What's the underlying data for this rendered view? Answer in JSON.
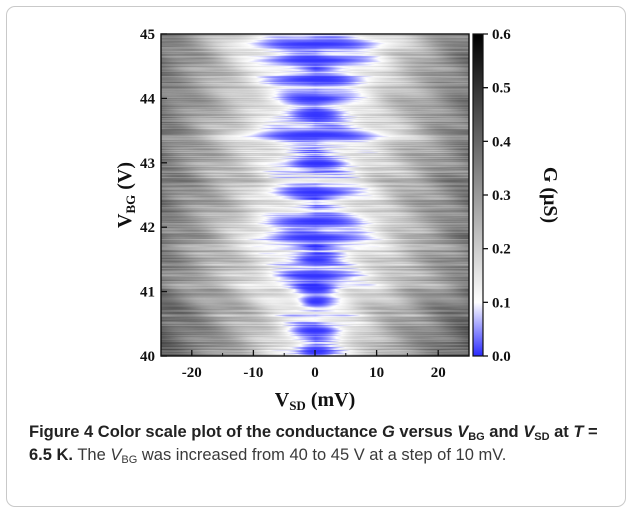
{
  "chart_data": {
    "type": "heatmap",
    "title": "",
    "xlabel": {
      "main": "V",
      "sub": "SD",
      "unit": "(mV)"
    },
    "ylabel": {
      "main": "V",
      "sub": "BG",
      "unit": "(V)"
    },
    "colorbar_label": "G (μS)",
    "xlim": [
      -25,
      25
    ],
    "ylim": [
      40,
      45
    ],
    "clim": [
      0.0,
      0.6
    ],
    "x_ticks": [
      {
        "value": -20,
        "label": "-20"
      },
      {
        "value": -10,
        "label": "-10"
      },
      {
        "value": 0,
        "label": "0"
      },
      {
        "value": 10,
        "label": "10"
      },
      {
        "value": 20,
        "label": "20"
      }
    ],
    "y_ticks": [
      {
        "value": 40,
        "label": "40"
      },
      {
        "value": 41,
        "label": "41"
      },
      {
        "value": 42,
        "label": "42"
      },
      {
        "value": 43,
        "label": "43"
      },
      {
        "value": 44,
        "label": "44"
      },
      {
        "value": 45,
        "label": "45"
      }
    ],
    "colorbar_ticks": [
      {
        "value": 0.0,
        "label": "0.0"
      },
      {
        "value": 0.1,
        "label": "0.1"
      },
      {
        "value": 0.2,
        "label": "0.2"
      },
      {
        "value": 0.3,
        "label": "0.3"
      },
      {
        "value": 0.4,
        "label": "0.4"
      },
      {
        "value": 0.5,
        "label": "0.5"
      },
      {
        "value": 0.6,
        "label": "0.6"
      }
    ],
    "colormap": [
      {
        "value": 0.0,
        "color": "#2a2aff"
      },
      {
        "value": 0.1,
        "color": "#ffffff"
      },
      {
        "value": 0.6,
        "color": "#000000"
      }
    ],
    "suppressed_regions": [
      {
        "vbg": 40.08,
        "half_width_mv": 3.0
      },
      {
        "vbg": 40.4,
        "half_width_mv": 4.5
      },
      {
        "vbg": 40.85,
        "half_width_mv": 2.5
      },
      {
        "vbg": 41.05,
        "half_width_mv": 3.5
      },
      {
        "vbg": 41.25,
        "half_width_mv": 6.0
      },
      {
        "vbg": 41.5,
        "half_width_mv": 4.0
      },
      {
        "vbg": 41.85,
        "half_width_mv": 11.0
      },
      {
        "vbg": 42.1,
        "half_width_mv": 9.0
      },
      {
        "vbg": 42.55,
        "half_width_mv": 8.0
      },
      {
        "vbg": 43.0,
        "half_width_mv": 5.0
      },
      {
        "vbg": 43.45,
        "half_width_mv": 13.0
      },
      {
        "vbg": 43.75,
        "half_width_mv": 5.0
      },
      {
        "vbg": 44.0,
        "half_width_mv": 7.0
      },
      {
        "vbg": 44.3,
        "half_width_mv": 9.0
      },
      {
        "vbg": 44.6,
        "half_width_mv": 12.0
      },
      {
        "vbg": 44.85,
        "half_width_mv": 14.0
      }
    ]
  },
  "caption": {
    "figure_label": "Figure 4",
    "title_part1": " Color scale plot of the conductance ",
    "var_g": "G",
    "title_part2": " versus ",
    "var_v1": "V",
    "sub_v1": "BG",
    "title_part3": " and ",
    "var_v2": "V",
    "sub_v2": "SD",
    "title_part4": " at ",
    "var_t": "T",
    "title_part5": " = 6.5 K.",
    "body_part1": " The ",
    "body_var_v": "V",
    "body_sub": "BG",
    "body_part2": " was increased from 40 to 45 V at a step of 10 mV."
  }
}
